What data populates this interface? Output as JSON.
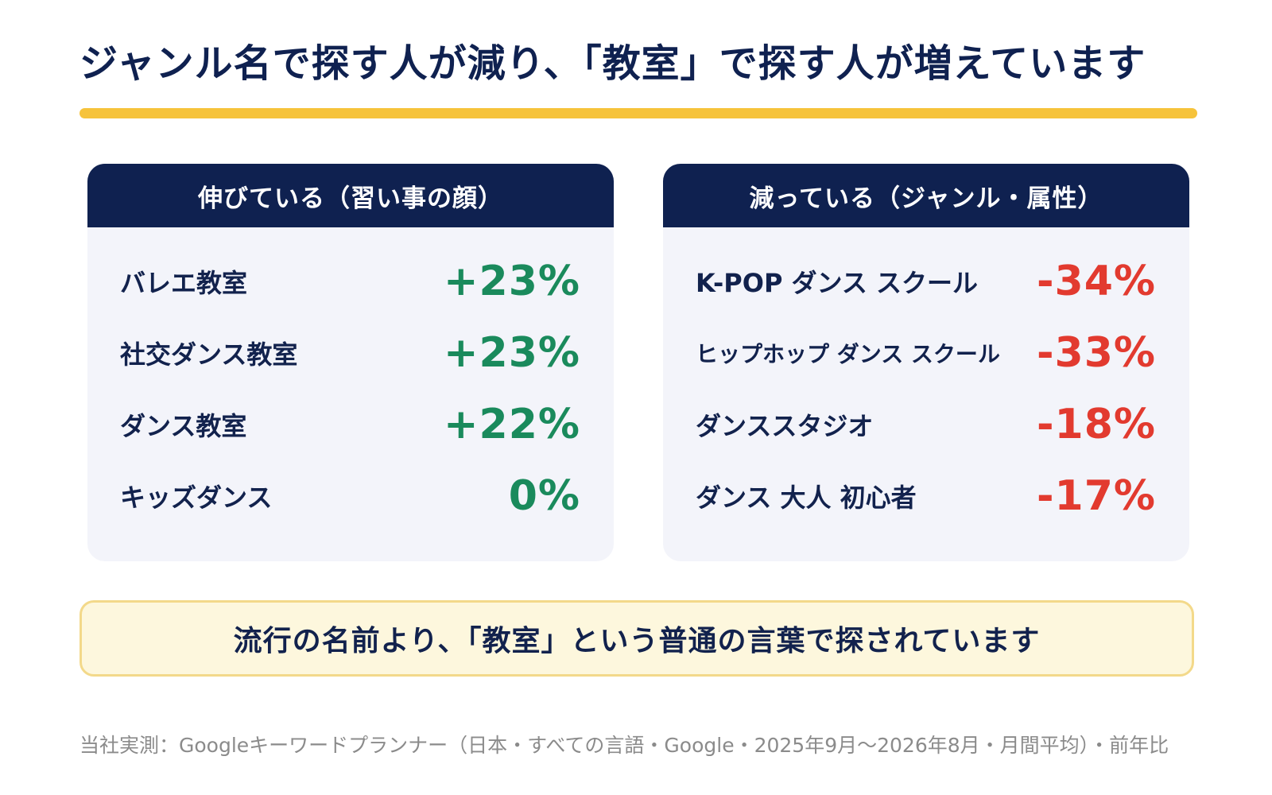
{
  "headline": "ジャンル名で探す人が減り、「教室」で探す人が増えています",
  "colors": {
    "navy": "#0f2150",
    "accent_yellow": "#f6c33b",
    "increase_green": "#1a8a5c",
    "decrease_red": "#e23a2f",
    "panel_bg": "#f3f4fa",
    "callout_bg": "#fdf7dd"
  },
  "rising": {
    "title": "伸びている（習い事の顔）",
    "items": [
      {
        "label": "バレエ教室",
        "value": "+23%"
      },
      {
        "label": "社交ダンス教室",
        "value": "+23%"
      },
      {
        "label": "ダンス教室",
        "value": "+22%"
      },
      {
        "label": "キッズダンス",
        "value": "0%"
      }
    ]
  },
  "falling": {
    "title": "減っている（ジャンル・属性）",
    "items": [
      {
        "label": "K-POP ダンス スクール",
        "value": "-34%"
      },
      {
        "label": "ヒップホップ ダンス スクール",
        "value": "-33%"
      },
      {
        "label": "ダンススタジオ",
        "value": "-18%"
      },
      {
        "label": "ダンス 大人 初心者",
        "value": "-17%"
      }
    ]
  },
  "callout": "流行の名前より、「教室」という普通の言葉で探されています",
  "footnote": "当社実測：Googleキーワードプランナー（日本・すべての言語・Google・2025年9月〜2026年8月・月間平均）・前年比"
}
